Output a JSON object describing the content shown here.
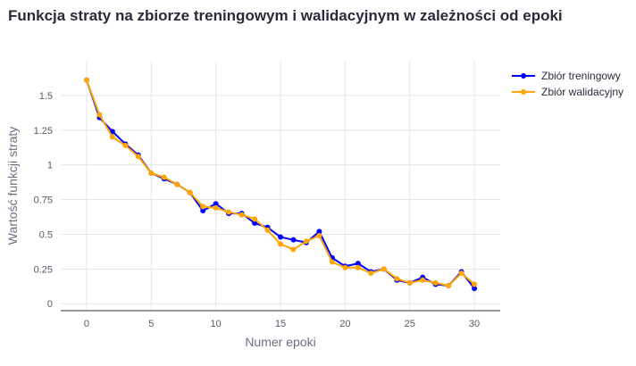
{
  "chart_data": {
    "type": "line",
    "title": "Funkcja straty na zbiorze treningowym i walidacyjnym w zależności od epoki",
    "xlabel": "Numer epoki",
    "ylabel": "Wartość funkcji straty",
    "x": [
      0,
      1,
      2,
      3,
      4,
      5,
      6,
      7,
      8,
      9,
      10,
      11,
      12,
      13,
      14,
      15,
      16,
      17,
      18,
      19,
      20,
      21,
      22,
      23,
      24,
      25,
      26,
      27,
      28,
      29,
      30
    ],
    "xlim": [
      -2,
      32
    ],
    "ylim": [
      -0.05,
      1.75
    ],
    "xticks": [
      0,
      5,
      10,
      15,
      20,
      25,
      30
    ],
    "xtick_labels": [
      "0",
      "5",
      "10",
      "15",
      "20",
      "25",
      "30"
    ],
    "yticks": [
      0,
      0.25,
      0.5,
      0.75,
      1,
      1.25,
      1.5
    ],
    "ytick_labels": [
      "0",
      "0.25",
      "0.5",
      "0.75",
      "1",
      "1.25",
      "1.5"
    ],
    "grid": true,
    "legend_position": "top-right",
    "series": [
      {
        "name": "Zbiór treningowy",
        "color": "#0000ff",
        "values": [
          1.61,
          1.34,
          1.24,
          1.15,
          1.07,
          0.94,
          0.9,
          0.86,
          0.8,
          0.67,
          0.72,
          0.65,
          0.65,
          0.58,
          0.55,
          0.48,
          0.46,
          0.44,
          0.52,
          0.33,
          0.27,
          0.29,
          0.23,
          0.25,
          0.17,
          0.15,
          0.19,
          0.14,
          0.13,
          0.23,
          0.11
        ]
      },
      {
        "name": "Zbiór walidacyjny",
        "color": "#ffa500",
        "values": [
          1.61,
          1.36,
          1.2,
          1.14,
          1.06,
          0.94,
          0.91,
          0.86,
          0.8,
          0.7,
          0.69,
          0.66,
          0.64,
          0.61,
          0.53,
          0.43,
          0.39,
          0.45,
          0.49,
          0.3,
          0.26,
          0.26,
          0.22,
          0.25,
          0.18,
          0.15,
          0.17,
          0.15,
          0.13,
          0.22,
          0.14
        ]
      }
    ]
  }
}
